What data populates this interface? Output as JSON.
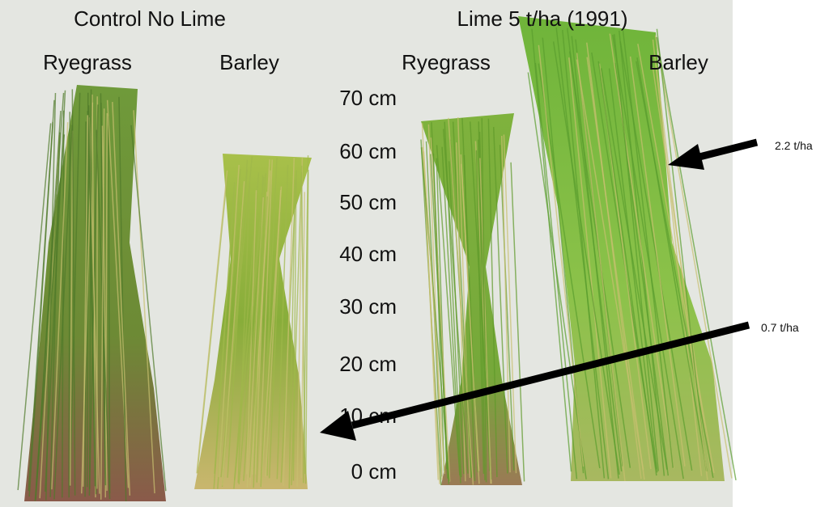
{
  "groups": [
    {
      "title": "Control No Lime",
      "plants": [
        "Ryegrass",
        "Barley"
      ]
    },
    {
      "title": "Lime 5 t/ha (1991)",
      "plants": [
        "Ryegrass",
        "Barley"
      ]
    }
  ],
  "scale": [
    "70 cm",
    "60 cm",
    "50 cm",
    "40 cm",
    "30 cm",
    "20 cm",
    "10 cm",
    "0 cm"
  ],
  "annotations": [
    "2.2 t/ha",
    "0.7 t/ha"
  ]
}
